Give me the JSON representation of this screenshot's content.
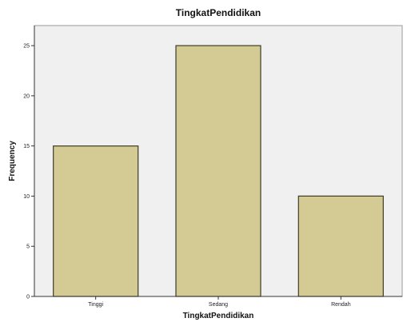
{
  "chart_data": {
    "type": "bar",
    "title": "TingkatPendidikan",
    "xlabel": "TingkatPendidikan",
    "ylabel": "Frequency",
    "categories": [
      "Tinggi",
      "Sedang",
      "Rendah"
    ],
    "values": [
      15,
      25,
      10
    ],
    "ylim": [
      0,
      27
    ],
    "yticks": [
      0,
      5,
      10,
      15,
      20,
      25
    ],
    "grid": false,
    "legend": "none"
  },
  "colors": {
    "bar_fill": "#d4cb94",
    "bar_stroke": "#3e3a24",
    "plot_background": "#f0f0f0",
    "axis": "#333333"
  }
}
